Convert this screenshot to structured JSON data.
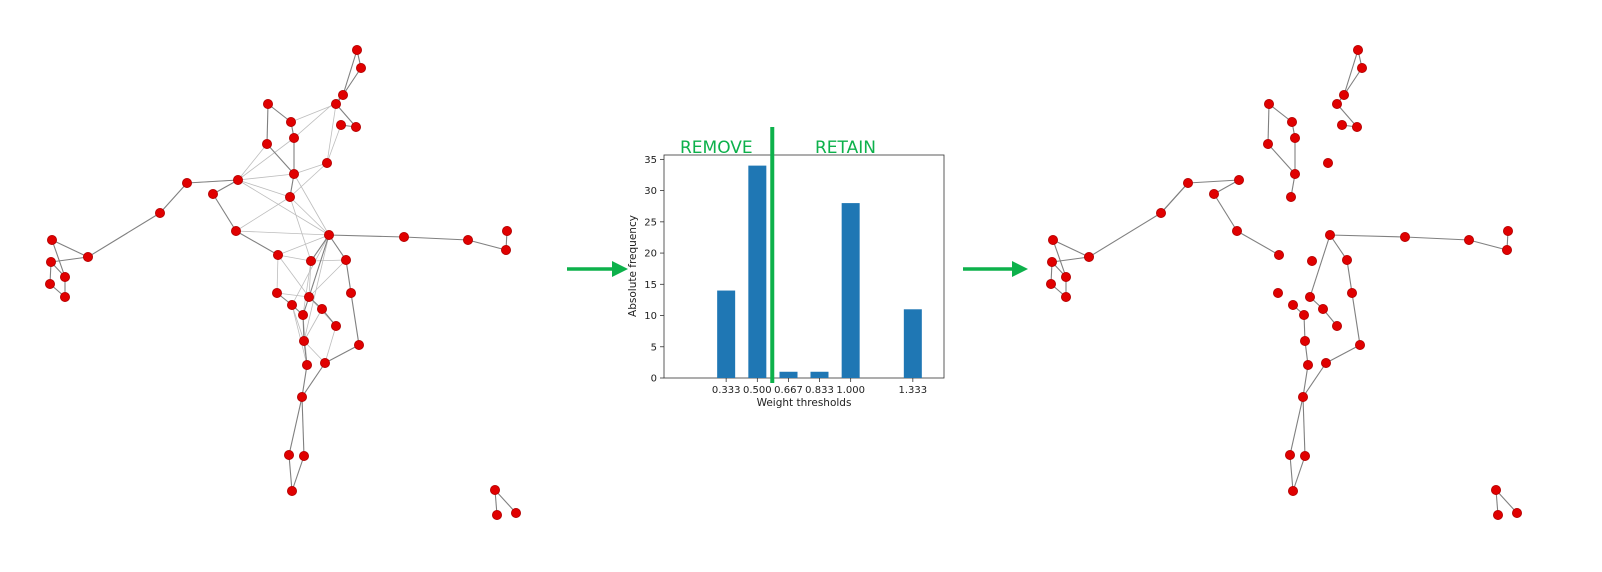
{
  "colors": {
    "node": "#e00000",
    "edge": "#808080",
    "bar": "#1f77b4",
    "accent_green": "#0db14b"
  },
  "labels": {
    "remove": "REMOVE",
    "retain": "RETAIN"
  },
  "chart_data": {
    "type": "bar",
    "categories": [
      "0.333",
      "0.500",
      "0.667",
      "0.833",
      "1.000",
      "1.333"
    ],
    "x": [
      0.333,
      0.5,
      0.667,
      0.833,
      1.0,
      1.333
    ],
    "values": [
      14,
      34,
      1,
      1,
      28,
      11
    ],
    "xlabel": "Weight thresholds",
    "ylabel": "Absolute frequency",
    "ylim": [
      0,
      35.7
    ],
    "xlim": [
      0.0,
      1.5
    ],
    "yticks": [
      "0",
      "5",
      "10",
      "15",
      "20",
      "25",
      "30",
      "35"
    ],
    "threshold": 0.58,
    "grid": false
  }
}
